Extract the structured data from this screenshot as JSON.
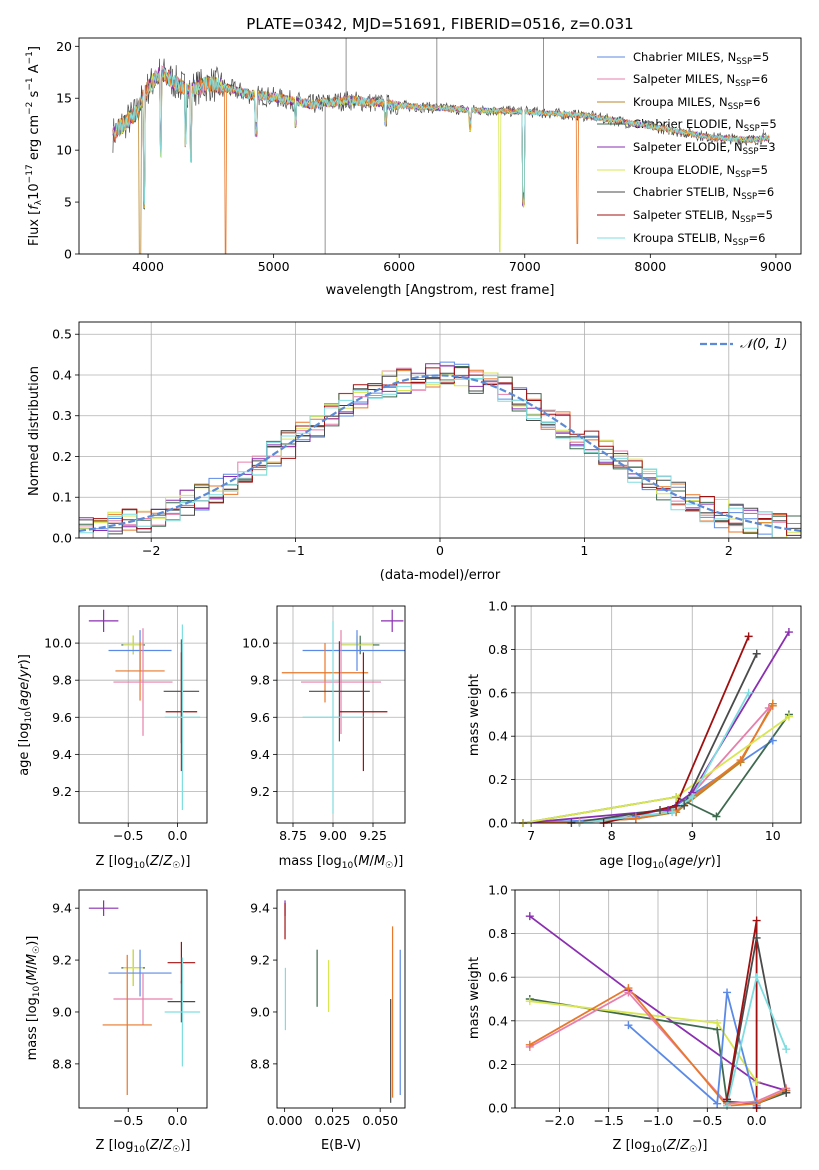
{
  "figure": {
    "title": "PLATE=0342, MJD=51691, FIBERID=0516, z=0.031",
    "colors": {
      "Chabrier MILES": "#5b8ae6",
      "Salpeter MILES": "#e67fab",
      "Kroupa MILES": "#b8862b",
      "Chabrier ELODIE": "#3f6a4f",
      "Salpeter ELODIE": "#8a2fb0",
      "Kroupa ELODIE": "#d8e650",
      "Chabrier STELIB": "#4b4b4b",
      "Salpeter STELIB": "#a01010",
      "Kroupa STELIB": "#7fdde0",
      "orange": "#e8782a",
      "normal_line": "#5b8ad6"
    }
  },
  "chart_data": [
    {
      "id": "spectrum",
      "type": "line",
      "title": "PLATE=0342, MJD=51691, FIBERID=0516, z=0.031",
      "xlabel": "wavelength [Angstrom, rest frame]",
      "ylabel": "Flux [f_λ 10^-17 erg cm^-2 s^-1 A^-1]",
      "xlim": [
        3450,
        9200
      ],
      "ylim": [
        0,
        20.8
      ],
      "xticks": [
        "4000",
        "5000",
        "6000",
        "7000",
        "8000",
        "9000"
      ],
      "yticks": [
        "0",
        "5",
        "10",
        "15",
        "20"
      ],
      "legend_position": "top-right",
      "legend": [
        {
          "name": "Chabrier MILES",
          "nssp": "5"
        },
        {
          "name": "Salpeter MILES",
          "nssp": "6"
        },
        {
          "name": "Kroupa MILES",
          "nssp": "6"
        },
        {
          "name": "Chabrier ELODIE",
          "nssp": "5"
        },
        {
          "name": "Salpeter ELODIE",
          "nssp": "3"
        },
        {
          "name": "Kroupa ELODIE",
          "nssp": "5"
        },
        {
          "name": "Chabrier STELIB",
          "nssp": "6"
        },
        {
          "name": "Salpeter STELIB",
          "nssp": "5"
        },
        {
          "name": "Kroupa STELIB",
          "nssp": "6"
        }
      ],
      "continuum": {
        "x": [
          3720,
          3800,
          3900,
          4000,
          4100,
          4300,
          4500,
          4800,
          5000,
          5300,
          5600,
          6000,
          6500,
          7000,
          7500,
          8000,
          8500,
          8800,
          8950
        ],
        "y": [
          11.5,
          12.5,
          13.5,
          16.0,
          17.5,
          15.8,
          16.4,
          15.4,
          15.1,
          14.4,
          14.8,
          14.3,
          13.9,
          13.7,
          13.3,
          12.3,
          11.2,
          11.0,
          11.2
        ]
      },
      "features": [
        {
          "x": 3935,
          "y": 0.0,
          "model": "Kroupa MILES"
        },
        {
          "x": 3970,
          "y": 5.0
        },
        {
          "x": 4102,
          "y": 10.0
        },
        {
          "x": 4300,
          "y": 11.0
        },
        {
          "x": 4340,
          "y": 9.5
        },
        {
          "x": 4618,
          "y": 0.0,
          "model": "orange"
        },
        {
          "x": 4861,
          "y": 12.0
        },
        {
          "x": 5175,
          "y": 12.8
        },
        {
          "x": 5893,
          "y": 13.0
        },
        {
          "x": 6563,
          "y": 12.5
        },
        {
          "x": 6800,
          "y": 0.2,
          "model": "Kroupa ELODIE"
        },
        {
          "x": 6990,
          "y": 5.2
        },
        {
          "x": 7420,
          "y": 1.0,
          "model": "orange"
        }
      ],
      "observed_spikes": [
        {
          "x": 5410,
          "y": 0.0
        },
        {
          "x": 5577,
          "y": 20.8
        },
        {
          "x": 6300,
          "y": 20.8
        },
        {
          "x": 7150,
          "y": 20.8
        },
        {
          "x": 8900,
          "y": 12.0
        }
      ]
    },
    {
      "id": "residuals",
      "type": "step",
      "xlabel": "(data-model)/error",
      "ylabel": "Normed distribution",
      "xlim": [
        -2.5,
        2.5
      ],
      "ylim": [
        0,
        0.53
      ],
      "xticks": [
        "−2",
        "−1",
        "0",
        "1",
        "2"
      ],
      "yticks": [
        "0.0",
        "0.1",
        "0.2",
        "0.3",
        "0.4",
        "0.5"
      ],
      "legend_position": "top-right",
      "legend": [
        {
          "name": "N(0,1)",
          "label": "𝒩(0, 1)"
        }
      ],
      "bin_width": 0.1
    },
    {
      "id": "age-Z",
      "type": "errorbar",
      "xlabel": "Z [log10(Z/Z☉)]",
      "ylabel": "age [log10(age/yr)]",
      "xlim": [
        -1.0,
        0.3
      ],
      "ylim": [
        9.03,
        10.2
      ],
      "xticks": [
        "−0.5",
        "0.0"
      ],
      "yticks": [
        "9.2",
        "9.4",
        "9.6",
        "9.8",
        "10.0"
      ],
      "points": [
        {
          "model": "Salpeter ELODIE",
          "x": -0.75,
          "y": 10.12,
          "dx": 0.15,
          "dy": 0.06
        },
        {
          "model": "Chabrier ELODIE",
          "x": -0.45,
          "y": 9.99,
          "dx": 0.12,
          "dy": 0.05
        },
        {
          "model": "Kroupa ELODIE",
          "x": -0.45,
          "y": 9.99,
          "dx": 0.1,
          "dy": 0.05
        },
        {
          "model": "Chabrier MILES",
          "x": -0.38,
          "y": 9.96,
          "dx": 0.32,
          "dy": 0.11
        },
        {
          "model": "orange",
          "x": -0.38,
          "y": 9.85,
          "dx": 0.25,
          "dy": 0.16
        },
        {
          "model": "Salpeter MILES",
          "x": -0.35,
          "y": 9.79,
          "dx": 0.3,
          "dy": 0.29
        },
        {
          "model": "Chabrier STELIB",
          "x": 0.04,
          "y": 9.74,
          "dx": 0.18,
          "dy": 0.28
        },
        {
          "model": "Salpeter STELIB",
          "x": 0.04,
          "y": 9.63,
          "dx": 0.16,
          "dy": 0.32
        },
        {
          "model": "Kroupa STELIB",
          "x": 0.05,
          "y": 9.6,
          "dx": 0.18,
          "dy": 0.5
        }
      ]
    },
    {
      "id": "age-mass",
      "type": "errorbar",
      "xlabel": "mass [log10(M/M☉)]",
      "ylabel": "",
      "xlim": [
        8.65,
        9.45
      ],
      "ylim": [
        9.03,
        10.2
      ],
      "xticks": [
        "8.75",
        "9.00",
        "9.25"
      ],
      "yticks": [
        "9.2",
        "9.4",
        "9.6",
        "9.8",
        "10.0"
      ],
      "points": [
        {
          "model": "Salpeter ELODIE",
          "x": 9.37,
          "y": 10.12,
          "dx": 0.07,
          "dy": 0.06
        },
        {
          "model": "Chabrier ELODIE",
          "x": 9.17,
          "y": 9.99,
          "dx": 0.12,
          "dy": 0.05
        },
        {
          "model": "Kroupa ELODIE",
          "x": 9.15,
          "y": 9.99,
          "dx": 0.1,
          "dy": 0.05
        },
        {
          "model": "Chabrier MILES",
          "x": 9.15,
          "y": 9.96,
          "dx": 0.34,
          "dy": 0.11
        },
        {
          "model": "orange",
          "x": 8.95,
          "y": 9.84,
          "dx": 0.27,
          "dy": 0.16
        },
        {
          "model": "Salpeter MILES",
          "x": 9.05,
          "y": 9.79,
          "dx": 0.25,
          "dy": 0.28
        },
        {
          "model": "Chabrier STELIB",
          "x": 9.04,
          "y": 9.74,
          "dx": 0.19,
          "dy": 0.27
        },
        {
          "model": "Salpeter STELIB",
          "x": 9.19,
          "y": 9.63,
          "dx": 0.15,
          "dy": 0.32
        },
        {
          "model": "Kroupa STELIB",
          "x": 9.0,
          "y": 9.6,
          "dx": 0.19,
          "dy": 0.52
        }
      ]
    },
    {
      "id": "weight-age",
      "type": "line",
      "xlabel": "age [log10(age/yr)]",
      "ylabel": "mass weight",
      "xlim": [
        6.8,
        10.35
      ],
      "ylim": [
        0,
        1.0
      ],
      "xticks": [
        "7",
        "8",
        "9",
        "10"
      ],
      "yticks": [
        "0.0",
        "0.2",
        "0.4",
        "0.6",
        "0.8",
        "1.0"
      ],
      "series": [
        {
          "model": "Chabrier MILES",
          "x": [
            6.9,
            7.6,
            8.3,
            8.8,
            10.0
          ],
          "y": [
            0.0,
            0.01,
            0.03,
            0.08,
            0.38
          ]
        },
        {
          "model": "Salpeter MILES",
          "x": [
            6.9,
            7.6,
            8.3,
            8.8,
            9.95
          ],
          "y": [
            0.0,
            0.005,
            0.02,
            0.05,
            0.53
          ]
        },
        {
          "model": "Kroupa MILES",
          "x": [
            6.9,
            7.6,
            8.3,
            8.8,
            9.6,
            10.0
          ],
          "y": [
            0.0,
            0.005,
            0.02,
            0.05,
            0.28,
            0.55
          ]
        },
        {
          "model": "orange",
          "x": [
            6.9,
            7.6,
            8.3,
            8.8,
            9.6,
            10.0
          ],
          "y": [
            0.0,
            0.005,
            0.02,
            0.06,
            0.29,
            0.54
          ]
        },
        {
          "model": "Chabrier ELODIE",
          "x": [
            6.9,
            8.8,
            9.3,
            10.2
          ],
          "y": [
            0.0,
            0.12,
            0.03,
            0.5
          ]
        },
        {
          "model": "Salpeter ELODIE",
          "x": [
            6.9,
            8.7,
            9.0,
            10.2
          ],
          "y": [
            0.0,
            0.06,
            0.14,
            0.88
          ]
        },
        {
          "model": "Kroupa ELODIE",
          "x": [
            6.9,
            8.8,
            10.2
          ],
          "y": [
            0.0,
            0.12,
            0.49
          ]
        },
        {
          "model": "Chabrier STELIB",
          "x": [
            7.5,
            8.6,
            8.9,
            9.8
          ],
          "y": [
            0.0,
            0.06,
            0.08,
            0.78
          ]
        },
        {
          "model": "Salpeter STELIB",
          "x": [
            7.9,
            8.8,
            9.7
          ],
          "y": [
            0.0,
            0.08,
            0.86
          ]
        },
        {
          "model": "Kroupa STELIB",
          "x": [
            7.6,
            8.75,
            9.0,
            9.7
          ],
          "y": [
            0.0,
            0.05,
            0.12,
            0.6
          ]
        }
      ]
    },
    {
      "id": "mass-Z",
      "type": "errorbar",
      "xlabel": "Z [log10(Z/Z☉)]",
      "ylabel": "mass [log10(M/M☉)]",
      "xlim": [
        -1.0,
        0.3
      ],
      "ylim": [
        8.63,
        9.47
      ],
      "xticks": [
        "−0.5",
        "0.0"
      ],
      "yticks": [
        "8.8",
        "9.0",
        "9.2",
        "9.4"
      ],
      "points": [
        {
          "model": "Salpeter ELODIE",
          "x": -0.75,
          "y": 9.4,
          "dx": 0.15,
          "dy": 0.03
        },
        {
          "model": "Chabrier ELODIE",
          "x": -0.45,
          "y": 9.17,
          "dx": 0.12,
          "dy": 0.07
        },
        {
          "model": "Kroupa ELODIE",
          "x": -0.45,
          "y": 9.17,
          "dx": 0.1,
          "dy": 0.07
        },
        {
          "model": "Chabrier MILES",
          "x": -0.38,
          "y": 9.15,
          "dx": 0.32,
          "dy": 0.09
        },
        {
          "model": "Salpeter MILES",
          "x": -0.35,
          "y": 9.05,
          "dx": 0.3,
          "dy": 0.1
        },
        {
          "model": "orange",
          "x": -0.51,
          "y": 8.95,
          "dx": 0.25,
          "dy": 0.27
        },
        {
          "model": "Chabrier STELIB",
          "x": 0.04,
          "y": 9.04,
          "dx": 0.14,
          "dy": 0.08
        },
        {
          "model": "Salpeter STELIB",
          "x": 0.04,
          "y": 9.19,
          "dx": 0.14,
          "dy": 0.08
        },
        {
          "model": "Kroupa STELIB",
          "x": 0.05,
          "y": 9.0,
          "dx": 0.18,
          "dy": 0.21
        }
      ]
    },
    {
      "id": "mass-EBV",
      "type": "errorbar",
      "xlabel": "E(B-V)",
      "ylabel": "",
      "xlim": [
        -0.004,
        0.063
      ],
      "ylim": [
        8.63,
        9.47
      ],
      "xticks": [
        "0.000",
        "0.025",
        "0.050"
      ],
      "yticks": [
        "8.8",
        "9.0",
        "9.2",
        "9.4"
      ],
      "points": [
        {
          "model": "Salpeter ELODIE",
          "x": 0.0002,
          "y": 9.4,
          "dx": 0.0,
          "dy": 0.03
        },
        {
          "model": "Salpeter STELIB",
          "x": 0.0002,
          "y": 9.35,
          "dx": 0.0,
          "dy": 0.07
        },
        {
          "model": "Kroupa STELIB",
          "x": 0.0004,
          "y": 9.05,
          "dx": 0.0,
          "dy": 0.12
        },
        {
          "model": "Chabrier ELODIE",
          "x": 0.017,
          "y": 9.13,
          "dx": 0.0,
          "dy": 0.11
        },
        {
          "model": "Kroupa ELODIE",
          "x": 0.023,
          "y": 9.1,
          "dx": 0.0,
          "dy": 0.1
        },
        {
          "model": "Chabrier STELIB",
          "x": 0.0555,
          "y": 8.85,
          "dx": 0.0,
          "dy": 0.2
        },
        {
          "model": "orange",
          "x": 0.0565,
          "y": 9.0,
          "dx": 0.0,
          "dy": 0.33
        },
        {
          "model": "Chabrier MILES",
          "x": 0.0605,
          "y": 8.96,
          "dx": 0.0,
          "dy": 0.28
        }
      ]
    },
    {
      "id": "weight-Z",
      "type": "line",
      "xlabel": "Z [log10(Z/Z☉)]",
      "ylabel": "mass weight",
      "xlim": [
        -2.45,
        0.45
      ],
      "ylim": [
        0,
        1.0
      ],
      "xticks": [
        "−2.0",
        "−1.5",
        "−1.0",
        "−0.5",
        "0.0"
      ],
      "yticks": [
        "0.0",
        "0.2",
        "0.4",
        "0.6",
        "0.8",
        "1.0"
      ],
      "series": [
        {
          "model": "Salpeter ELODIE",
          "x": [
            -2.3,
            -1.3,
            0.0,
            0.3
          ],
          "y": [
            0.88,
            0.54,
            0.12,
            0.08
          ]
        },
        {
          "model": "Chabrier ELODIE",
          "x": [
            -2.3,
            -0.4,
            -0.3,
            0.0,
            0.3
          ],
          "y": [
            0.5,
            0.36,
            0.03,
            0.02,
            0.07
          ]
        },
        {
          "model": "Kroupa ELODIE",
          "x": [
            -2.3,
            -0.4,
            0.0
          ],
          "y": [
            0.49,
            0.39,
            0.12
          ]
        },
        {
          "model": "Salpeter MILES",
          "x": [
            -2.3,
            -1.3,
            -0.3,
            0.0,
            0.3
          ],
          "y": [
            0.28,
            0.53,
            0.02,
            0.03,
            0.09
          ]
        },
        {
          "model": "orange",
          "x": [
            -2.3,
            -1.3,
            -0.3,
            0.0,
            0.3
          ],
          "y": [
            0.29,
            0.55,
            0.01,
            0.02,
            0.08
          ]
        },
        {
          "model": "Chabrier MILES",
          "x": [
            -1.3,
            -0.4,
            -0.3,
            0.0
          ],
          "y": [
            0.38,
            0.02,
            0.53,
            0.01
          ]
        },
        {
          "model": "Chabrier STELIB",
          "x": [
            -0.3,
            0.0,
            0.3
          ],
          "y": [
            0.03,
            0.78,
            0.07
          ]
        },
        {
          "model": "Salpeter STELIB",
          "x": [
            -0.3,
            0.0,
            0.0
          ],
          "y": [
            0.04,
            0.86,
            0.0
          ]
        },
        {
          "model": "Kroupa STELIB",
          "x": [
            -0.3,
            0.0,
            0.3
          ],
          "y": [
            0.01,
            0.6,
            0.27
          ]
        }
      ]
    }
  ]
}
